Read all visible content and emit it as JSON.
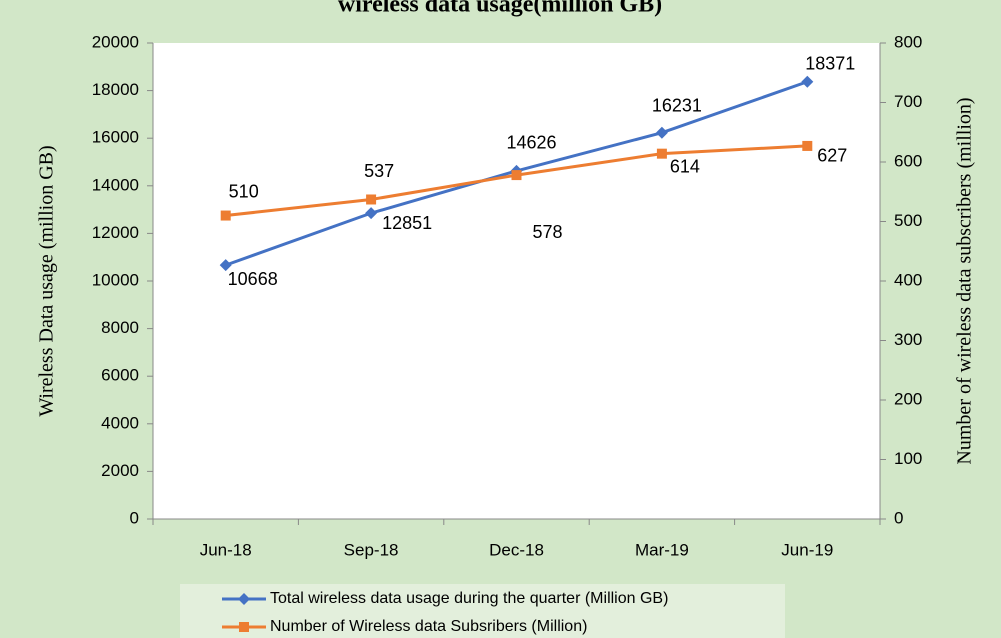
{
  "chart_data": {
    "type": "line",
    "title": "wireless data usage(million GB)",
    "y_label": "Wireless Data usage (million GB)",
    "y2_label": "Number of wireless data subscribers (million)",
    "categories": [
      "Jun-18",
      "Sep-18",
      "Dec-18",
      "Mar-19",
      "Jun-19"
    ],
    "series": [
      {
        "name": "Total wireless data usage during the quarter (Million GB)",
        "color": "#4472c4",
        "marker": "diamond",
        "values": [
          10668,
          12851,
          14626,
          16231,
          18371
        ]
      },
      {
        "name": "Number of Wireless data Subsribers (Million)",
        "color": "#ed7d31",
        "marker": "square",
        "axis": "y2",
        "values": [
          510,
          537,
          578,
          614,
          627
        ]
      }
    ],
    "ylim": [
      0,
      20000
    ],
    "yticks": [
      0,
      2000,
      4000,
      6000,
      8000,
      10000,
      12000,
      14000,
      16000,
      18000,
      20000
    ],
    "y2lim": [
      0,
      800
    ],
    "y2ticks": [
      0,
      100,
      200,
      300,
      400,
      500,
      600,
      700,
      800
    ],
    "legend": "bottom"
  }
}
